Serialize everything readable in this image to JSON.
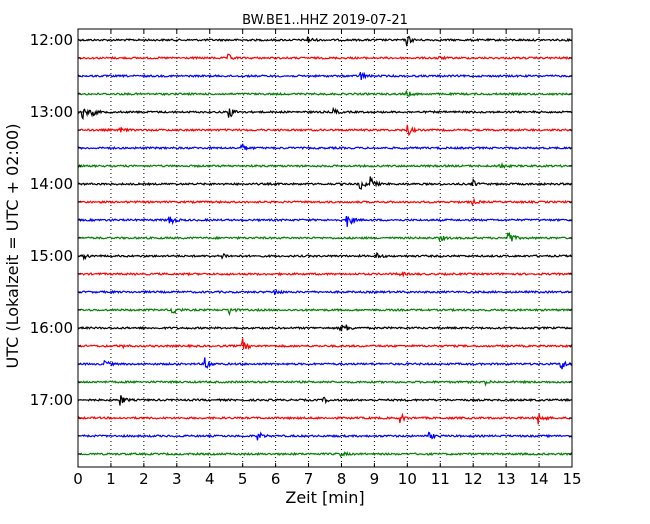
{
  "chart_data": {
    "type": "line",
    "title": "BW.BE1..HHZ 2019-07-21",
    "xlabel": "Zeit  [min]",
    "ylabel": "UTC (Lokalzeit = UTC + 02:00)",
    "xlim": [
      0,
      15
    ],
    "x_ticks": [
      "0",
      "1",
      "2",
      "3",
      "4",
      "5",
      "6",
      "7",
      "8",
      "9",
      "10",
      "11",
      "12",
      "13",
      "14",
      "15"
    ],
    "y_ticks": [
      "12:00",
      "13:00",
      "14:00",
      "15:00",
      "16:00",
      "17:00"
    ],
    "grid": "vertical dotted",
    "trace_interval_minutes": 15,
    "trace_colors": [
      "#000000",
      "#ff0000",
      "#0000ff",
      "#008000"
    ],
    "series": [
      {
        "start": "12:00",
        "events": [
          [
            7.0,
            0.5
          ],
          [
            10.0,
            0.7
          ]
        ]
      },
      {
        "start": "12:15",
        "events": [
          [
            4.6,
            0.4
          ],
          [
            10.9,
            0.3
          ]
        ]
      },
      {
        "start": "12:30",
        "events": [
          [
            8.6,
            0.6
          ]
        ]
      },
      {
        "start": "12:45",
        "events": [
          [
            10.0,
            0.4
          ]
        ]
      },
      {
        "start": "13:00",
        "events": [
          [
            0.15,
            1.0
          ],
          [
            0.4,
            0.8
          ],
          [
            4.6,
            0.9
          ],
          [
            7.8,
            0.4
          ]
        ]
      },
      {
        "start": "13:15",
        "events": [
          [
            10.0,
            1.0
          ],
          [
            1.3,
            0.3
          ]
        ]
      },
      {
        "start": "13:30",
        "events": [
          [
            5.0,
            0.5
          ]
        ]
      },
      {
        "start": "13:45",
        "events": [
          [
            12.8,
            0.5
          ]
        ]
      },
      {
        "start": "14:00",
        "events": [
          [
            8.6,
            0.7
          ],
          [
            8.9,
            1.0
          ],
          [
            12.0,
            0.5
          ]
        ]
      },
      {
        "start": "14:15",
        "events": [
          [
            12.0,
            0.3
          ]
        ]
      },
      {
        "start": "14:30",
        "events": [
          [
            2.8,
            0.8
          ],
          [
            8.2,
            1.0
          ]
        ]
      },
      {
        "start": "14:45",
        "events": [
          [
            13.1,
            1.0
          ],
          [
            11.0,
            0.4
          ]
        ]
      },
      {
        "start": "15:00",
        "events": [
          [
            0.2,
            0.4
          ],
          [
            4.4,
            0.4
          ],
          [
            9.1,
            0.4
          ]
        ]
      },
      {
        "start": "15:15",
        "events": [
          [
            9.8,
            0.3
          ]
        ]
      },
      {
        "start": "15:30",
        "events": [
          [
            6.0,
            0.4
          ]
        ]
      },
      {
        "start": "15:45",
        "events": [
          [
            2.9,
            0.7
          ],
          [
            4.6,
            0.6
          ]
        ]
      },
      {
        "start": "16:00",
        "events": [
          [
            8.0,
            0.4
          ],
          [
            8.2,
            0.3
          ]
        ]
      },
      {
        "start": "16:15",
        "events": [
          [
            5.0,
            1.0
          ],
          [
            1.3,
            0.3
          ]
        ]
      },
      {
        "start": "16:30",
        "events": [
          [
            0.8,
            0.6
          ],
          [
            3.9,
            0.9
          ],
          [
            14.7,
            0.8
          ]
        ]
      },
      {
        "start": "16:45",
        "events": [
          [
            12.4,
            0.3
          ]
        ]
      },
      {
        "start": "17:00",
        "events": [
          [
            1.3,
            0.8
          ],
          [
            7.5,
            0.3
          ]
        ]
      },
      {
        "start": "17:15",
        "events": [
          [
            9.8,
            0.6
          ],
          [
            14.0,
            1.0
          ]
        ]
      },
      {
        "start": "17:30",
        "events": [
          [
            5.5,
            0.5
          ],
          [
            10.7,
            0.4
          ]
        ]
      },
      {
        "start": "17:45",
        "events": [
          [
            8.0,
            0.3
          ]
        ]
      }
    ]
  }
}
